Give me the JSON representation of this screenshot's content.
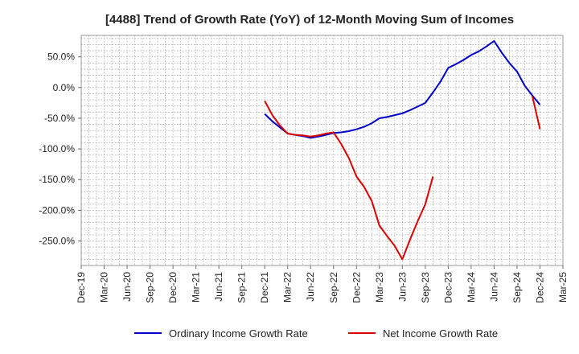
{
  "chart_data": {
    "type": "line",
    "title": "[4488]  Trend of Growth Rate (YoY) of 12-Month Moving Sum of Incomes",
    "xlabel": "",
    "ylabel": "",
    "x_tick_labels": [
      "Dec-19",
      "Mar-20",
      "Jun-20",
      "Sep-20",
      "Dec-20",
      "Mar-21",
      "Jun-21",
      "Sep-21",
      "Dec-21",
      "Mar-22",
      "Jun-22",
      "Sep-22",
      "Dec-22",
      "Mar-23",
      "Jun-23",
      "Sep-23",
      "Dec-23",
      "Mar-24",
      "Jun-24",
      "Sep-24",
      "Dec-24",
      "Mar-25"
    ],
    "y_ticks": [
      50,
      0,
      -50,
      -100,
      -150,
      -200,
      -250
    ],
    "y_tick_labels": [
      "50.0%",
      "0.0%",
      "-50.0%",
      "-100.0%",
      "-150.0%",
      "-200.0%",
      "-250.0%"
    ],
    "xlim": [
      "2019-12",
      "2025-03"
    ],
    "ylim": [
      -290,
      85
    ],
    "grid": true,
    "legend_position": "bottom",
    "series": [
      {
        "name": "Ordinary Income Growth Rate",
        "color": "#0000cc",
        "points": [
          [
            "2021-12",
            -43
          ],
          [
            "2022-01",
            -55
          ],
          [
            "2022-02",
            -65
          ],
          [
            "2022-03",
            -75
          ],
          [
            "2022-04",
            -77
          ],
          [
            "2022-05",
            -79
          ],
          [
            "2022-06",
            -82
          ],
          [
            "2022-07",
            -80
          ],
          [
            "2022-08",
            -77
          ],
          [
            "2022-09",
            -74
          ],
          [
            "2022-10",
            -73
          ],
          [
            "2022-11",
            -71
          ],
          [
            "2022-12",
            -68
          ],
          [
            "2023-01",
            -64
          ],
          [
            "2023-02",
            -58
          ],
          [
            "2023-03",
            -50
          ],
          [
            "2023-04",
            -48
          ],
          [
            "2023-05",
            -45
          ],
          [
            "2023-06",
            -42
          ],
          [
            "2023-07",
            -37
          ],
          [
            "2023-08",
            -31
          ],
          [
            "2023-09",
            -25
          ],
          [
            "2023-10",
            -8
          ],
          [
            "2023-11",
            10
          ],
          [
            "2023-12",
            32
          ],
          [
            "2024-01",
            38
          ],
          [
            "2024-02",
            45
          ],
          [
            "2024-03",
            53
          ],
          [
            "2024-04",
            59
          ],
          [
            "2024-05",
            67
          ],
          [
            "2024-06",
            76
          ],
          [
            "2024-07",
            57
          ],
          [
            "2024-08",
            40
          ],
          [
            "2024-09",
            26
          ],
          [
            "2024-10",
            3
          ],
          [
            "2024-11",
            -13
          ],
          [
            "2024-12",
            -28
          ]
        ]
      },
      {
        "name": "Net Income Growth Rate",
        "color": "#dd0000",
        "points": [
          [
            "2021-12",
            -22
          ],
          [
            "2022-01",
            -45
          ],
          [
            "2022-02",
            -62
          ],
          [
            "2022-03",
            -75
          ],
          [
            "2022-04",
            -77
          ],
          [
            "2022-05",
            -78
          ],
          [
            "2022-06",
            -80
          ],
          [
            "2022-07",
            -78
          ],
          [
            "2022-08",
            -75
          ],
          [
            "2022-09",
            -73
          ],
          [
            "2022-10",
            -92
          ],
          [
            "2022-11",
            -115
          ],
          [
            "2022-12",
            -145
          ],
          [
            "2023-01",
            -162
          ],
          [
            "2023-02",
            -185
          ],
          [
            "2023-03",
            -225
          ],
          [
            "2023-04",
            -242
          ],
          [
            "2023-05",
            -258
          ],
          [
            "2023-06",
            -280
          ],
          [
            "2023-07",
            -248
          ],
          [
            "2023-08",
            -218
          ],
          [
            "2023-09",
            -190
          ],
          [
            "2023-10",
            -145
          ]
        ],
        "points_2": [
          [
            "2024-11",
            -14
          ],
          [
            "2024-12",
            -68
          ]
        ]
      }
    ]
  }
}
